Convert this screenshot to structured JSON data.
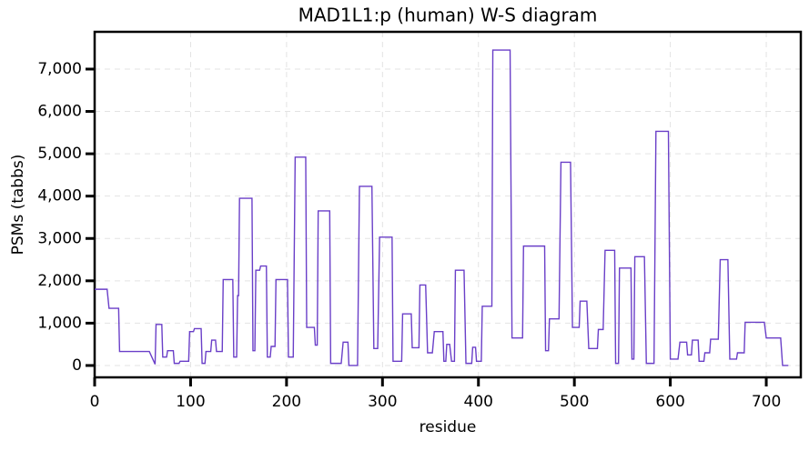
{
  "chart_data": {
    "type": "line",
    "title": "MAD1L1:p (human) W-S diagram",
    "xlabel": "residue",
    "ylabel": "PSMs (tabbs)",
    "x": [
      0,
      13,
      15,
      25,
      26,
      56,
      57,
      63,
      64,
      70,
      71,
      75,
      76,
      82,
      83,
      88,
      89,
      98,
      99,
      103,
      104,
      111,
      112,
      115,
      116,
      121,
      122,
      126,
      127,
      133,
      134,
      144,
      145,
      148,
      149,
      150,
      151,
      164,
      165,
      167,
      168,
      172,
      173,
      179,
      180,
      183,
      184,
      188,
      189,
      201,
      202,
      207,
      209,
      220,
      221,
      229,
      230,
      232,
      233,
      245,
      246,
      257,
      259,
      264,
      265,
      274,
      276,
      289,
      291,
      295,
      297,
      310,
      311,
      320,
      321,
      330,
      331,
      338,
      339,
      345,
      347,
      352,
      354,
      363,
      364,
      366,
      367,
      370,
      372,
      375,
      376,
      385,
      387,
      393,
      394,
      397,
      398,
      403,
      404,
      414,
      415,
      433,
      435,
      446,
      447,
      469,
      470,
      473,
      474,
      484,
      486,
      496,
      498,
      505,
      506,
      513,
      515,
      524,
      525,
      530,
      532,
      542,
      543,
      546,
      547,
      551,
      552,
      559,
      560,
      562,
      563,
      573,
      575,
      583,
      585,
      598,
      600,
      608,
      610,
      617,
      618,
      622,
      623,
      629,
      630,
      635,
      636,
      641,
      642,
      650,
      652,
      660,
      662,
      669,
      670,
      677,
      678,
      698,
      700,
      715,
      717,
      723
    ],
    "series": [
      {
        "name": "PSMs",
        "color": "#6a3fc8",
        "values": [
          1800,
          1800,
          1350,
          1350,
          330,
          330,
          330,
          30,
          970,
          970,
          200,
          200,
          350,
          350,
          50,
          50,
          100,
          100,
          800,
          800,
          870,
          870,
          50,
          50,
          330,
          330,
          600,
          600,
          330,
          330,
          2030,
          2030,
          200,
          200,
          1650,
          1650,
          3950,
          3950,
          350,
          350,
          2250,
          2250,
          2350,
          2350,
          200,
          200,
          450,
          450,
          2030,
          2030,
          200,
          200,
          4920,
          4920,
          900,
          900,
          480,
          480,
          3650,
          3650,
          50,
          50,
          550,
          550,
          0,
          0,
          4230,
          4230,
          400,
          400,
          3030,
          3030,
          100,
          100,
          1220,
          1220,
          420,
          420,
          1900,
          1900,
          300,
          300,
          800,
          800,
          100,
          100,
          500,
          500,
          100,
          100,
          2250,
          2250,
          50,
          50,
          430,
          430,
          100,
          100,
          1400,
          1400,
          7450,
          7450,
          650,
          650,
          2820,
          2820,
          350,
          350,
          1100,
          1100,
          4800,
          4800,
          900,
          900,
          1520,
          1520,
          400,
          400,
          850,
          850,
          2720,
          2720,
          50,
          50,
          2300,
          2300,
          2300,
          2300,
          150,
          150,
          2570,
          2570,
          50,
          50,
          5530,
          5530,
          150,
          150,
          550,
          550,
          250,
          250,
          600,
          600,
          100,
          100,
          300,
          300,
          620,
          620,
          2500,
          2500,
          150,
          150,
          300,
          300,
          1020,
          1020,
          650,
          650,
          0,
          0
        ]
      }
    ],
    "xlim": [
      0,
      736
    ],
    "ylim": [
      -280,
      7880
    ],
    "xticks": [
      0,
      100,
      200,
      300,
      400,
      500,
      600,
      700
    ],
    "yticks": [
      0,
      {
        "value": 1000,
        "label": "1,000"
      },
      {
        "value": 2000,
        "label": "2,000"
      },
      {
        "value": 3000,
        "label": "3,000"
      },
      {
        "value": 4000,
        "label": "4,000"
      },
      {
        "value": 5000,
        "label": "5,000"
      },
      {
        "value": 6000,
        "label": "6,000"
      },
      {
        "value": 7000,
        "label": "7,000"
      }
    ],
    "grid": true
  }
}
